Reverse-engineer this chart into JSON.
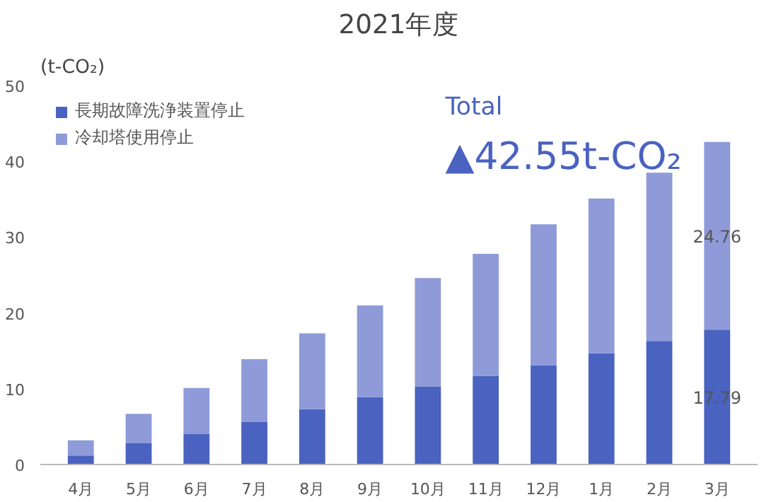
{
  "chart_data": {
    "type": "bar",
    "stacked": true,
    "title": "2021年度",
    "ylabel": "(t-CO₂)",
    "categories": [
      "4月",
      "5月",
      "6月",
      "7月",
      "8月",
      "9月",
      "10月",
      "11月",
      "12月",
      "1月",
      "2月",
      "3月"
    ],
    "series": [
      {
        "name": "長期故障洗浄装置停止",
        "color": "#4a62c0",
        "values": [
          1.2,
          2.8,
          4.0,
          5.6,
          7.3,
          8.9,
          10.3,
          11.7,
          13.1,
          14.7,
          16.3,
          17.79
        ],
        "value_labels": [
          null,
          null,
          null,
          null,
          null,
          null,
          null,
          null,
          null,
          null,
          null,
          "17.79"
        ]
      },
      {
        "name": "冷却塔使用停止",
        "color": "#8e9bd8",
        "values": [
          2.0,
          3.9,
          6.1,
          8.3,
          10.0,
          12.1,
          14.3,
          16.1,
          18.6,
          20.4,
          22.2,
          24.76
        ],
        "value_labels": [
          null,
          null,
          null,
          null,
          null,
          null,
          null,
          null,
          null,
          null,
          null,
          "24.76"
        ]
      }
    ],
    "ylim": [
      0,
      50
    ],
    "yticks": [
      0,
      10,
      20,
      30,
      40,
      50
    ],
    "grid": false,
    "legend": "top left",
    "annotations": [
      "Total",
      "▲42.55t-CO₂"
    ]
  }
}
